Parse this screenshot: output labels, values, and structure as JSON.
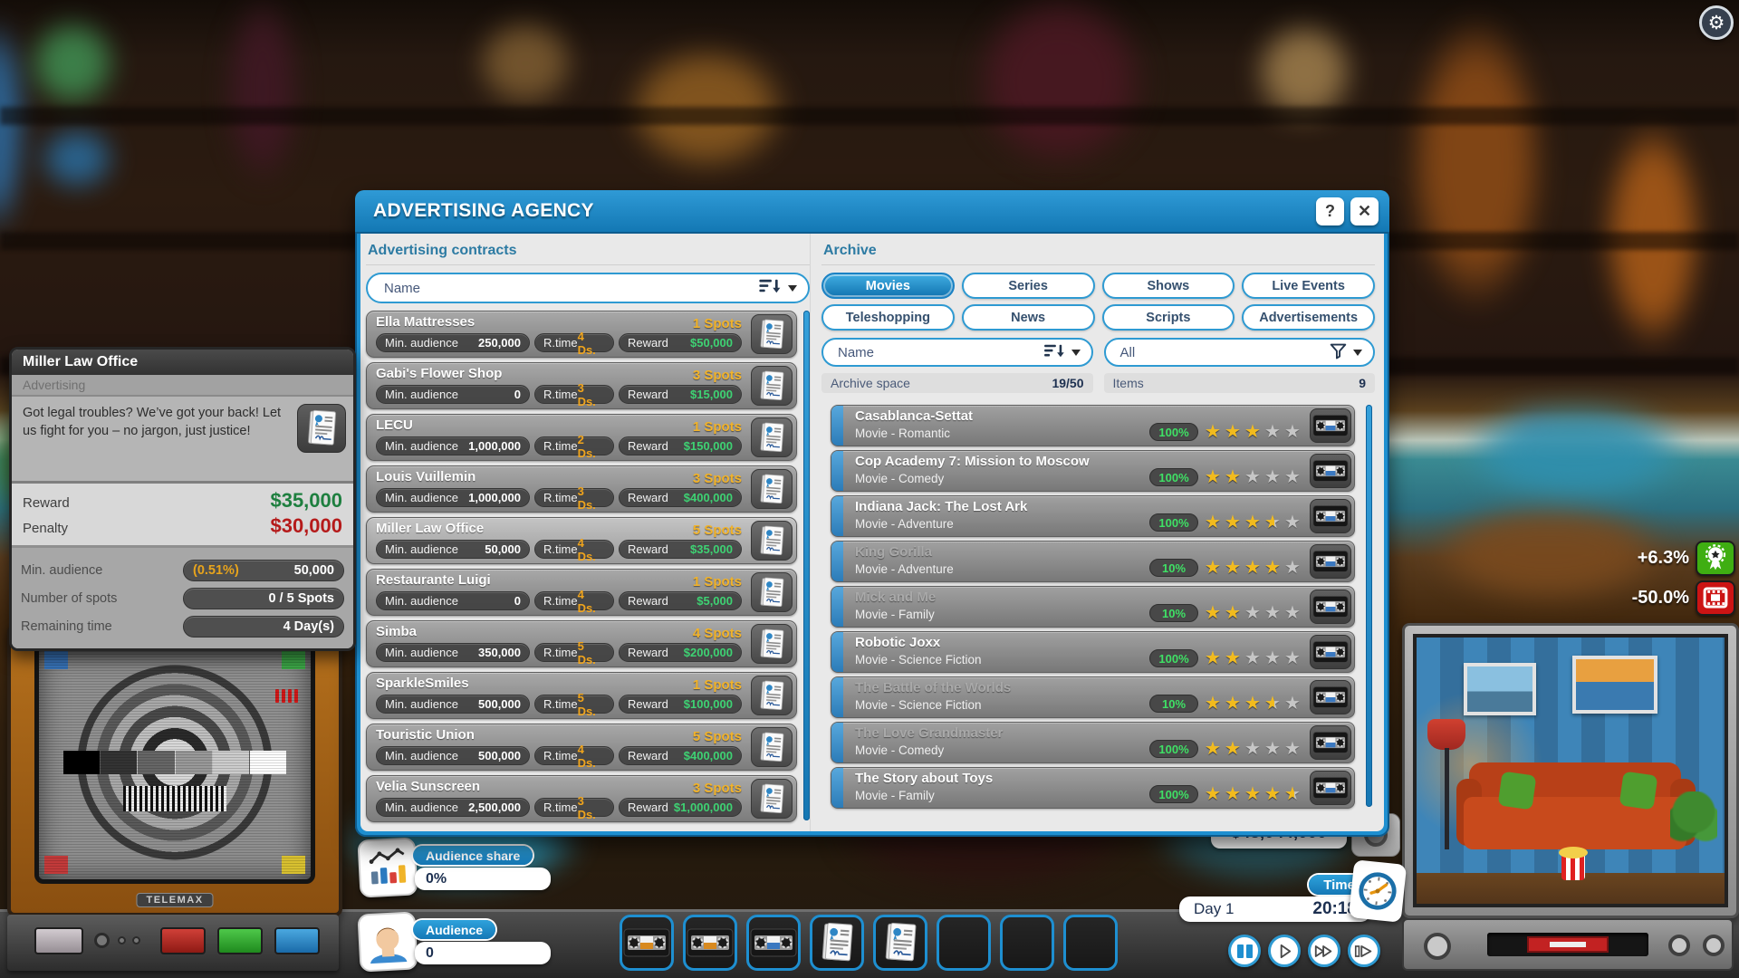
{
  "window": {
    "title": "ADVERTISING AGENCY",
    "help_label": "?",
    "close_label": "✕",
    "contracts": {
      "header": "Advertising contracts",
      "search_value": "Name",
      "min_audience_label": "Min. audience",
      "rtime_label": "R.time",
      "reward_label": "Reward",
      "items": [
        {
          "name": "Ella Mattresses",
          "spots": "1 Spots",
          "min_audience": "250,000",
          "rtime": "4 Ds.",
          "reward": "$50,000",
          "highlight": false
        },
        {
          "name": "Gabi's Flower Shop",
          "spots": "3 Spots",
          "min_audience": "0",
          "rtime": "3 Ds.",
          "reward": "$15,000",
          "highlight": false
        },
        {
          "name": "LECU",
          "spots": "1 Spots",
          "min_audience": "1,000,000",
          "rtime": "2 Ds.",
          "reward": "$150,000",
          "highlight": false
        },
        {
          "name": "Louis Vuillemin",
          "spots": "3 Spots",
          "min_audience": "1,000,000",
          "rtime": "3 Ds.",
          "reward": "$400,000",
          "highlight": false
        },
        {
          "name": "Miller Law Office",
          "spots": "5 Spots",
          "min_audience": "50,000",
          "rtime": "4 Ds.",
          "reward": "$35,000",
          "highlight": true
        },
        {
          "name": "Restaurante Luigi",
          "spots": "1 Spots",
          "min_audience": "0",
          "rtime": "4 Ds.",
          "reward": "$5,000",
          "highlight": false
        },
        {
          "name": "Simba",
          "spots": "4 Spots",
          "min_audience": "350,000",
          "rtime": "5 Ds.",
          "reward": "$200,000",
          "highlight": false
        },
        {
          "name": "SparkleSmiles",
          "spots": "1 Spots",
          "min_audience": "500,000",
          "rtime": "5 Ds.",
          "reward": "$100,000",
          "highlight": false
        },
        {
          "name": "Touristic Union",
          "spots": "5 Spots",
          "min_audience": "500,000",
          "rtime": "4 Ds.",
          "reward": "$400,000",
          "highlight": false
        },
        {
          "name": "Velia Sunscreen",
          "spots": "3 Spots",
          "min_audience": "2,500,000",
          "rtime": "3 Ds.",
          "reward": "$1,000,000",
          "highlight": false
        }
      ]
    },
    "archive": {
      "header": "Archive",
      "tabs": [
        "Movies",
        "Series",
        "Shows",
        "Live Events",
        "Teleshopping",
        "News",
        "Scripts",
        "Advertisements"
      ],
      "active_tab": "Movies",
      "search_value": "Name",
      "filter_value": "All",
      "space_label": "Archive space",
      "space_value": "19/50",
      "items_label": "Items",
      "items_value": "9",
      "entries": [
        {
          "title": "Casablanca-Settat",
          "subtitle": "Movie - Romantic",
          "percent": "100%",
          "stars": 3,
          "dimmed": false
        },
        {
          "title": "Cop Academy 7: Mission to Moscow",
          "subtitle": "Movie - Comedy",
          "percent": "100%",
          "stars": 2,
          "dimmed": false
        },
        {
          "title": "Indiana Jack: The Lost Ark",
          "subtitle": "Movie - Adventure",
          "percent": "100%",
          "stars": 3.5,
          "dimmed": false
        },
        {
          "title": "King Gorilla",
          "subtitle": "Movie - Adventure",
          "percent": "10%",
          "stars": 4,
          "dimmed": true
        },
        {
          "title": "Mick and Me",
          "subtitle": "Movie - Family",
          "percent": "10%",
          "stars": 2,
          "dimmed": true
        },
        {
          "title": "Robotic Joxx",
          "subtitle": "Movie - Science Fiction",
          "percent": "100%",
          "stars": 2,
          "dimmed": false
        },
        {
          "title": "The Battle of the Worlds",
          "subtitle": "Movie - Science Fiction",
          "percent": "10%",
          "stars": 3.5,
          "dimmed": true
        },
        {
          "title": "The Love Grandmaster",
          "subtitle": "Movie - Comedy",
          "percent": "100%",
          "stars": 2,
          "dimmed": true
        },
        {
          "title": "The Story about Toys",
          "subtitle": "Movie - Family",
          "percent": "100%",
          "stars": 4.5,
          "dimmed": false
        }
      ]
    }
  },
  "tooltip": {
    "title": "Miller Law Office",
    "category": "Advertising",
    "description": "Got legal troubles? We’ve got your back! Let us fight for you – no jargon, just justice!",
    "reward_label": "Reward",
    "reward": "$35,000",
    "penalty_label": "Penalty",
    "penalty": "$30,000",
    "min_audience_label": "Min. audience",
    "min_audience_pct": "(0.51%)",
    "min_audience": "50,000",
    "spots_label": "Number of spots",
    "spots": "0 / 5 Spots",
    "time_label": "Remaining time",
    "time": "4 Day(s)"
  },
  "hud": {
    "audience_share_label": "Audience share",
    "audience_share": "0%",
    "audience_label": "Audience",
    "audience": "0",
    "money": "$48,044,000",
    "time_label": "Time",
    "day": "Day 1",
    "clock": "20:18",
    "tv_brand": "TELEMAX",
    "modifiers": [
      {
        "value": "+6.3%",
        "icon": "award-ribbon",
        "color": "#3fae12"
      },
      {
        "value": "-50.0%",
        "icon": "film-strip",
        "color": "#cc1414"
      }
    ],
    "slots": [
      {
        "type": "tape",
        "label_color": "#d88a20"
      },
      {
        "type": "tape",
        "label_color": "#d88a20"
      },
      {
        "type": "tape",
        "label_color": "#3a78c0"
      },
      {
        "type": "contract"
      },
      {
        "type": "contract"
      },
      {
        "type": "empty"
      },
      {
        "type": "empty"
      },
      {
        "type": "empty"
      }
    ]
  },
  "colors": {
    "accent_blue": "#1e8fd0",
    "spots_yellow": "#f2b32a",
    "rtime_orange": "#f0a41c",
    "reward_green": "#3ed273",
    "percent_green": "#3fe065",
    "star_gold": "#f2bb1d",
    "money_navy": "#1d3050",
    "reward_dark_green": "#1e7f3f",
    "penalty_red": "#b51a1a"
  }
}
